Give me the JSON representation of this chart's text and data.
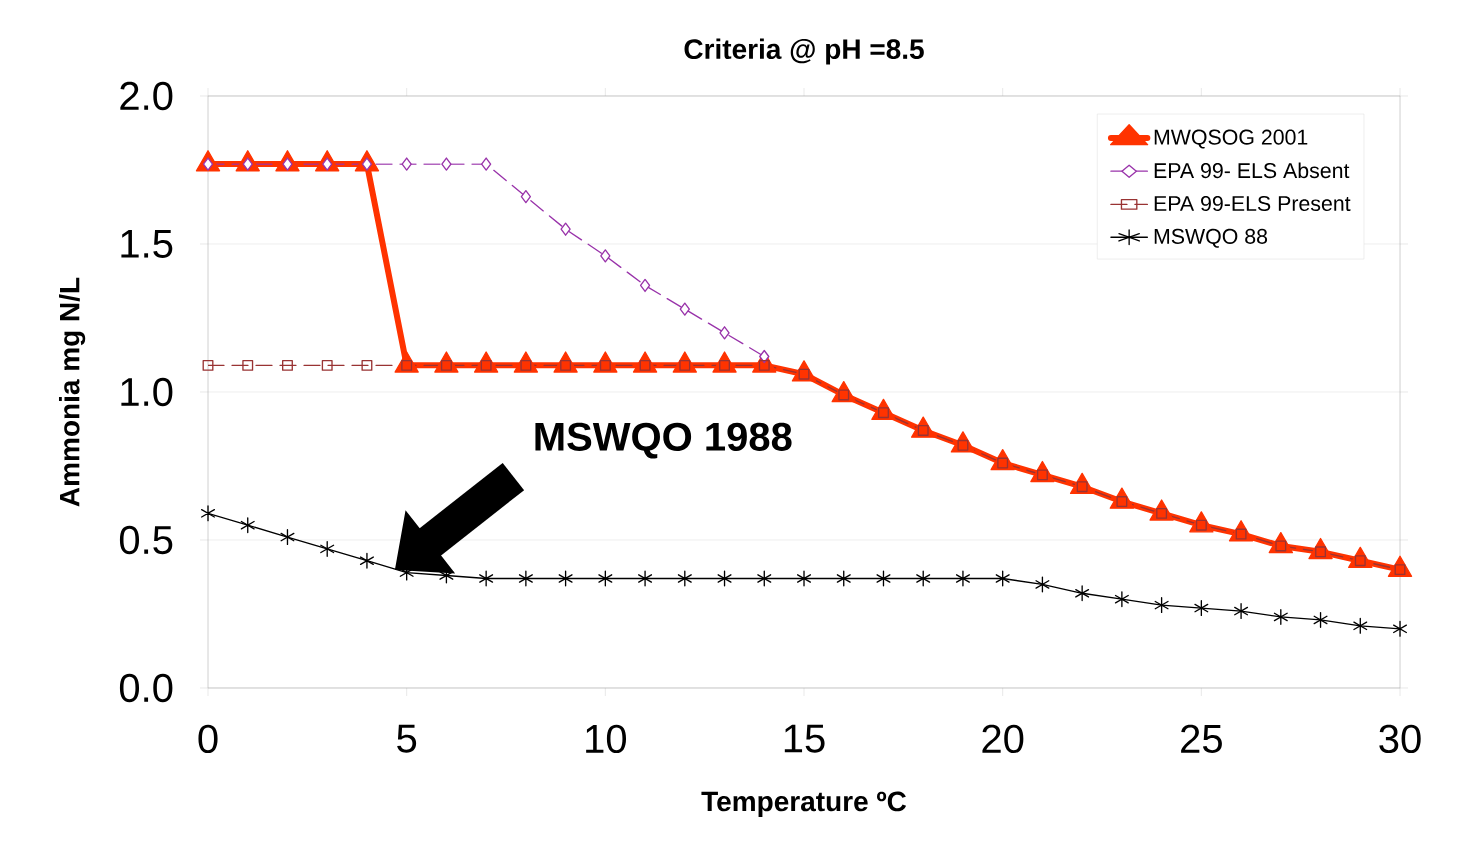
{
  "chart_data": {
    "type": "line",
    "title": "Criteria @ pH =8.5",
    "xlabel": "Temperature ºC",
    "ylabel": "Ammonia mg N/L",
    "x": [
      0,
      1,
      2,
      3,
      4,
      5,
      6,
      7,
      8,
      9,
      10,
      11,
      12,
      13,
      14,
      15,
      16,
      17,
      18,
      19,
      20,
      21,
      22,
      23,
      24,
      25,
      26,
      27,
      28,
      29,
      30
    ],
    "series": [
      {
        "name": "MWQSOG 2001",
        "color": "#ff3300",
        "marker": "triangle",
        "line_style": "solid",
        "values": [
          1.77,
          1.77,
          1.77,
          1.77,
          1.77,
          1.09,
          1.09,
          1.09,
          1.09,
          1.09,
          1.09,
          1.09,
          1.09,
          1.09,
          1.09,
          1.06,
          0.99,
          0.93,
          0.87,
          0.82,
          0.76,
          0.72,
          0.68,
          0.63,
          0.59,
          0.55,
          0.52,
          0.48,
          0.46,
          0.43,
          0.4
        ]
      },
      {
        "name": "EPA 99- ELS Absent",
        "color": "#9933aa",
        "marker": "diamond",
        "line_style": "dashed",
        "values": [
          1.77,
          1.77,
          1.77,
          1.77,
          1.77,
          1.77,
          1.77,
          1.77,
          1.66,
          1.55,
          1.46,
          1.36,
          1.28,
          1.2,
          1.12,
          null,
          null,
          null,
          null,
          null,
          null,
          null,
          null,
          null,
          null,
          null,
          null,
          null,
          null,
          null,
          null
        ]
      },
      {
        "name": "EPA 99-ELS Present",
        "color": "#993333",
        "marker": "square",
        "line_style": "dashed",
        "values": [
          1.09,
          1.09,
          1.09,
          1.09,
          1.09,
          1.09,
          1.09,
          1.09,
          1.09,
          1.09,
          1.09,
          1.09,
          1.09,
          1.09,
          1.09,
          1.06,
          0.99,
          0.93,
          0.87,
          0.82,
          0.76,
          0.72,
          0.68,
          0.63,
          0.59,
          0.55,
          0.52,
          0.48,
          0.46,
          0.43,
          0.4
        ]
      },
      {
        "name": "MSWQO 88",
        "color": "#000000",
        "marker": "cross",
        "line_style": "solid",
        "values": [
          0.59,
          0.55,
          0.51,
          0.47,
          0.43,
          0.39,
          0.38,
          0.37,
          0.37,
          0.37,
          0.37,
          0.37,
          0.37,
          0.37,
          0.37,
          0.37,
          0.37,
          0.37,
          0.37,
          0.37,
          0.37,
          0.35,
          0.32,
          0.3,
          0.28,
          0.27,
          0.26,
          0.24,
          0.23,
          0.21,
          0.2
        ]
      }
    ],
    "xlim": [
      0,
      30
    ],
    "ylim": [
      0,
      2.0
    ],
    "xticks": [
      0,
      5,
      10,
      15,
      20,
      25,
      30
    ],
    "yticks": [
      {
        "value": 0,
        "label": "0.0"
      },
      {
        "value": 0.5,
        "label": "0.5"
      },
      {
        "value": 1.0,
        "label": "1.0"
      },
      {
        "value": 1.5,
        "label": "1.5"
      },
      {
        "value": 2.0,
        "label": "2.0"
      }
    ],
    "grid": "y",
    "legend": "top right",
    "annotations": [
      "MSWQO 1988"
    ]
  }
}
